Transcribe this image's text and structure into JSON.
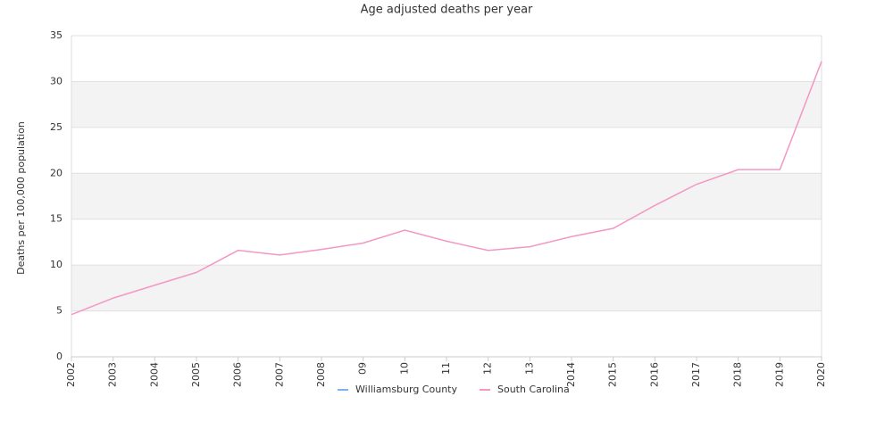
{
  "chart_data": {
    "type": "line",
    "title": "Age adjusted deaths per year",
    "y_label": "Deaths per 100,000 population",
    "categories": [
      "2002",
      "2003",
      "2004",
      "2005",
      "2006",
      "2007",
      "2008",
      "09",
      "10",
      "11",
      "12",
      "13",
      "2014",
      "2015",
      "2016",
      "2017",
      "2018",
      "2019",
      "2020"
    ],
    "series": [
      {
        "name": "Williamsburg County",
        "color": "#7cb5ec",
        "values": [
          null,
          null,
          null,
          null,
          null,
          null,
          null,
          null,
          null,
          null,
          null,
          null,
          null,
          null,
          null,
          null,
          null,
          null,
          null
        ]
      },
      {
        "name": "South Carolina",
        "color": "#f397c4",
        "values": [
          4.6,
          6.4,
          7.8,
          9.2,
          11.6,
          11.1,
          11.7,
          12.4,
          13.8,
          12.6,
          11.6,
          12.0,
          13.1,
          14.0,
          16.5,
          18.8,
          20.4,
          20.4,
          32.2
        ]
      }
    ],
    "ylim": [
      0,
      35
    ],
    "yticks": [
      0,
      5,
      10,
      15,
      20,
      25,
      30,
      35
    ],
    "grid": true,
    "legend": "bottom"
  }
}
